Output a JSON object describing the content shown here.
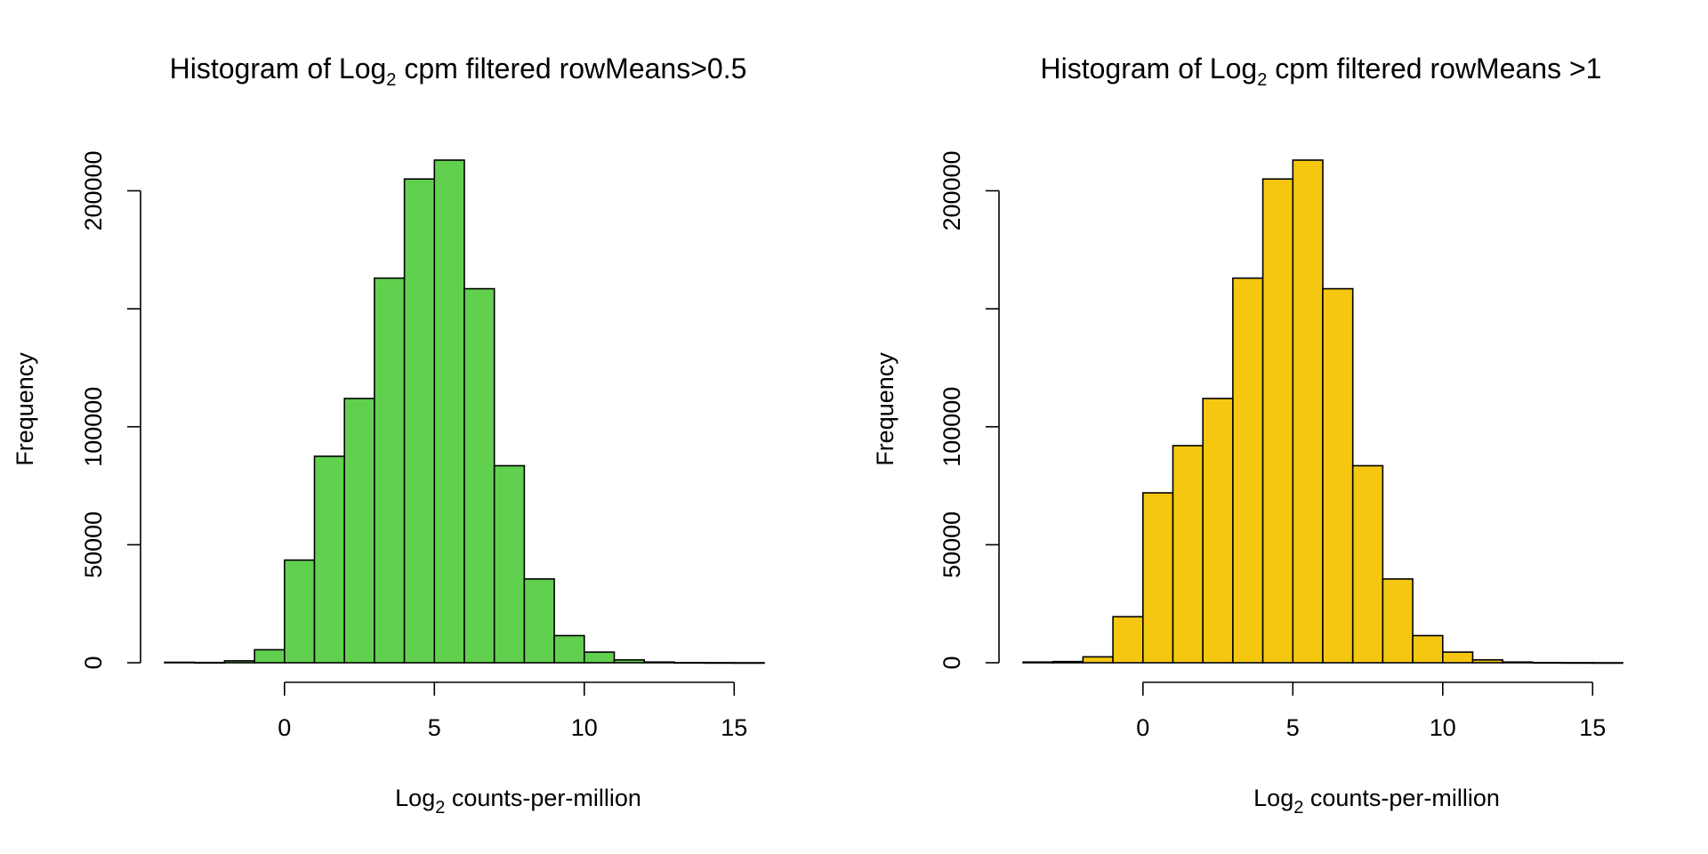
{
  "chart_data": [
    {
      "type": "bar",
      "title": {
        "prefix": "Histogram of Log",
        "sub": "2",
        "suffix": " cpm filtered rowMeans>0.5"
      },
      "xlabel": {
        "prefix": "Log",
        "sub": "2",
        "suffix": " counts-per-million"
      },
      "ylabel": "Frequency",
      "color": "#61D04F",
      "bin_width": 1,
      "x": [
        -4,
        -3,
        -2,
        -1,
        0,
        1,
        2,
        3,
        4,
        5,
        6,
        7,
        8,
        9,
        10,
        11,
        12,
        13,
        14,
        15
      ],
      "values": [
        200,
        100,
        800,
        5500,
        43500,
        87500,
        112000,
        163000,
        205000,
        213000,
        158500,
        83500,
        35500,
        11500,
        4500,
        1200,
        300,
        80,
        30,
        10
      ],
      "xticks": [
        0,
        5,
        10,
        15
      ],
      "yticks": [
        0,
        50000,
        100000,
        150000,
        200000
      ],
      "ytick_labels": [
        "0",
        "50000",
        "100000",
        "",
        "200000"
      ],
      "xlim": [
        -4,
        16
      ],
      "ylim": [
        0,
        213000
      ]
    },
    {
      "type": "bar",
      "title": {
        "prefix": "Histogram of Log",
        "sub": "2",
        "suffix": " cpm filtered rowMeans >1"
      },
      "xlabel": {
        "prefix": "Log",
        "sub": "2",
        "suffix": " counts-per-million"
      },
      "ylabel": "Frequency",
      "color": "#F5C710",
      "bin_width": 1,
      "x": [
        -4,
        -3,
        -2,
        -1,
        0,
        1,
        2,
        3,
        4,
        5,
        6,
        7,
        8,
        9,
        10,
        11,
        12,
        13,
        14,
        15
      ],
      "values": [
        300,
        500,
        2500,
        19500,
        72000,
        92000,
        112000,
        163000,
        205000,
        213000,
        158500,
        83500,
        35500,
        11500,
        4500,
        1200,
        300,
        80,
        30,
        10
      ],
      "xticks": [
        0,
        5,
        10,
        15
      ],
      "yticks": [
        0,
        50000,
        100000,
        150000,
        200000
      ],
      "ytick_labels": [
        "0",
        "50000",
        "100000",
        "",
        "200000"
      ],
      "xlim": [
        -4,
        16
      ],
      "ylim": [
        0,
        213000
      ]
    }
  ]
}
